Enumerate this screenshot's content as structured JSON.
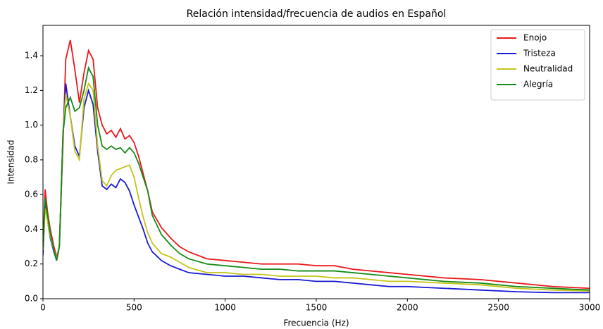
{
  "chart_data": {
    "type": "line",
    "title": "Relación intensidad/frecuencia de audios en Español",
    "x_label": "Frecuencia (Hz)",
    "y_label": "Intensidad",
    "x": [
      0,
      12,
      25,
      40,
      60,
      75,
      90,
      110,
      125,
      150,
      175,
      200,
      225,
      250,
      275,
      300,
      325,
      350,
      375,
      400,
      425,
      450,
      475,
      500,
      525,
      550,
      575,
      600,
      650,
      700,
      750,
      800,
      900,
      1000,
      1100,
      1200,
      1300,
      1400,
      1500,
      1600,
      1700,
      1800,
      1900,
      2000,
      2200,
      2400,
      2600,
      2800,
      3000
    ],
    "series": [
      {
        "name": "Enojo",
        "color": "#e8191c",
        "values": [
          0.3,
          0.63,
          0.5,
          0.4,
          0.3,
          0.24,
          0.3,
          0.9,
          1.38,
          1.49,
          1.32,
          1.13,
          1.3,
          1.43,
          1.38,
          1.1,
          1.0,
          0.95,
          0.97,
          0.93,
          0.98,
          0.92,
          0.94,
          0.9,
          0.82,
          0.72,
          0.62,
          0.5,
          0.41,
          0.35,
          0.3,
          0.27,
          0.23,
          0.22,
          0.21,
          0.2,
          0.2,
          0.2,
          0.19,
          0.19,
          0.17,
          0.16,
          0.15,
          0.14,
          0.12,
          0.11,
          0.09,
          0.07,
          0.06
        ]
      },
      {
        "name": "Tristeza",
        "color": "#1a1ad6",
        "values": [
          0.25,
          0.55,
          0.45,
          0.35,
          0.27,
          0.22,
          0.3,
          0.95,
          1.24,
          1.05,
          0.88,
          0.82,
          1.1,
          1.2,
          1.12,
          0.85,
          0.65,
          0.63,
          0.66,
          0.64,
          0.69,
          0.67,
          0.62,
          0.54,
          0.47,
          0.4,
          0.32,
          0.27,
          0.22,
          0.19,
          0.17,
          0.15,
          0.14,
          0.13,
          0.13,
          0.12,
          0.11,
          0.11,
          0.1,
          0.1,
          0.09,
          0.08,
          0.07,
          0.07,
          0.06,
          0.05,
          0.04,
          0.035,
          0.035
        ]
      },
      {
        "name": "Neutralidad",
        "color": "#c4c41a",
        "values": [
          0.28,
          0.52,
          0.45,
          0.36,
          0.28,
          0.23,
          0.3,
          0.95,
          1.18,
          1.05,
          0.85,
          0.8,
          1.15,
          1.24,
          1.2,
          0.88,
          0.68,
          0.65,
          0.71,
          0.74,
          0.75,
          0.76,
          0.77,
          0.7,
          0.58,
          0.47,
          0.38,
          0.32,
          0.26,
          0.24,
          0.21,
          0.18,
          0.15,
          0.15,
          0.14,
          0.14,
          0.13,
          0.13,
          0.13,
          0.12,
          0.12,
          0.11,
          0.1,
          0.1,
          0.09,
          0.08,
          0.06,
          0.05,
          0.045
        ]
      },
      {
        "name": "Alegría",
        "color": "#168a16",
        "values": [
          0.3,
          0.58,
          0.48,
          0.38,
          0.28,
          0.22,
          0.3,
          0.95,
          1.1,
          1.16,
          1.08,
          1.1,
          1.2,
          1.33,
          1.28,
          1.0,
          0.88,
          0.86,
          0.88,
          0.86,
          0.87,
          0.84,
          0.87,
          0.84,
          0.78,
          0.7,
          0.62,
          0.48,
          0.37,
          0.31,
          0.26,
          0.23,
          0.2,
          0.19,
          0.18,
          0.17,
          0.17,
          0.16,
          0.16,
          0.16,
          0.15,
          0.14,
          0.13,
          0.12,
          0.1,
          0.09,
          0.07,
          0.06,
          0.05
        ]
      }
    ],
    "xlim": [
      0,
      3000
    ],
    "xticks": [
      0,
      500,
      1000,
      1500,
      2000,
      2500,
      3000
    ],
    "ylim": [
      0,
      1.575
    ],
    "yticks": [
      {
        "value": 0,
        "label": "0.0"
      },
      0.2,
      0.4,
      0.6,
      0.8,
      {
        "value": 1,
        "label": "1.0"
      },
      1.2,
      1.4
    ],
    "legend": "upper right"
  }
}
